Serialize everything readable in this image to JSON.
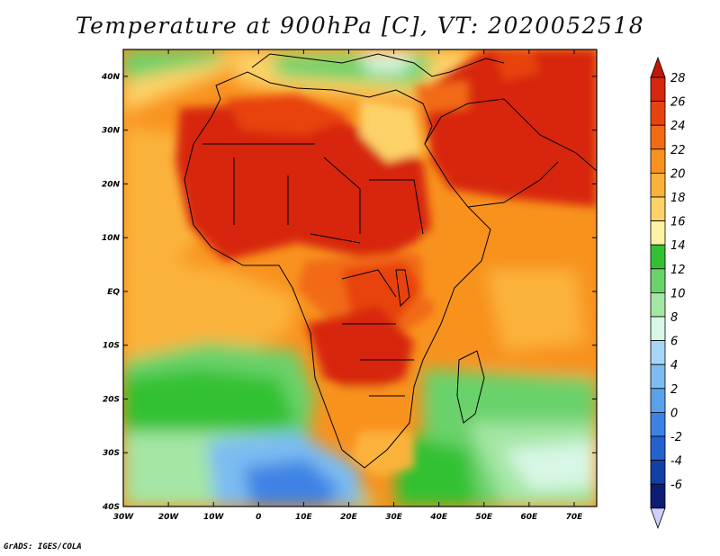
{
  "title": "Temperature at 900hPa [C], VT: 2020052518",
  "credit": "GrADS: IGES/COLA",
  "map": {
    "projection": "lat-lon",
    "lon_range": [
      -30,
      75
    ],
    "lat_range": [
      -40,
      45
    ],
    "lon_ticks": [
      "30W",
      "20W",
      "10W",
      "0",
      "10E",
      "20E",
      "30E",
      "40E",
      "50E",
      "60E",
      "70E"
    ],
    "lat_ticks": [
      "40N",
      "30N",
      "20N",
      "10N",
      "EQ",
      "10S",
      "20S",
      "30S",
      "40S"
    ],
    "variable": "temperature",
    "level": "900hPa",
    "units": "C"
  },
  "colorbar": {
    "labels": [
      "28",
      "26",
      "24",
      "22",
      "20",
      "18",
      "16",
      "14",
      "12",
      "10",
      "8",
      "6",
      "4",
      "2",
      "0",
      "-2",
      "-4",
      "-6"
    ],
    "colors": [
      "#d7270d",
      "#e8430e",
      "#f26a12",
      "#f8921e",
      "#fbb23a",
      "#fdd267",
      "#fef2a2",
      "#33c133",
      "#6ad26a",
      "#a4e6a4",
      "#d8f7e6",
      "#a6d6f6",
      "#7cbcf2",
      "#5aa1ec",
      "#3c82e4",
      "#2462d0",
      "#1240a6",
      "#0c1c73"
    ],
    "top_color": "#c21708",
    "bottom_color": "#cfcffa"
  }
}
